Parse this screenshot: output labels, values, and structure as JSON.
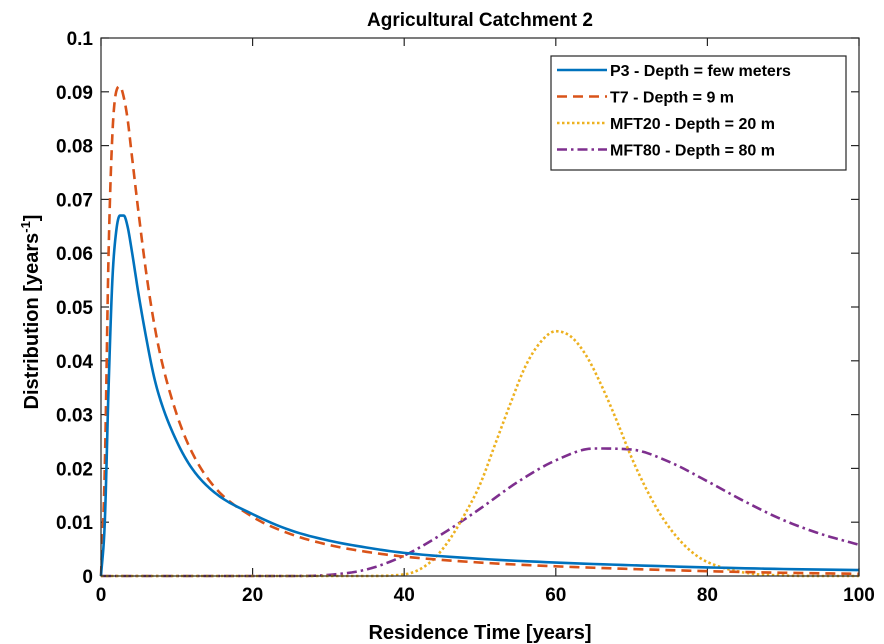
{
  "chart_data": {
    "type": "line",
    "title": "Agricultural Catchment 2",
    "xlabel": "Residence Time [years]",
    "ylabel": "Distribution [years",
    "ylabel_sup": "-1",
    "ylabel_end": "]",
    "xlim": [
      0,
      100
    ],
    "ylim": [
      0,
      0.1
    ],
    "xticks": [
      0,
      20,
      40,
      60,
      80,
      100
    ],
    "xtick_labels": [
      "0",
      "20",
      "40",
      "60",
      "80",
      "100"
    ],
    "yticks": [
      0,
      0.01,
      0.02,
      0.03,
      0.04,
      0.05,
      0.06,
      0.07,
      0.08,
      0.09,
      0.1
    ],
    "ytick_labels": [
      "0",
      "0.01",
      "0.02",
      "0.03",
      "0.04",
      "0.05",
      "0.06",
      "0.07",
      "0.08",
      "0.09",
      "0.1"
    ],
    "grid": false,
    "legend_position": "top-right",
    "series": [
      {
        "name": "P3 - Depth = few meters",
        "color": "#0072BD",
        "dash": "solid",
        "x": [
          0,
          0.5,
          1,
          1.5,
          2,
          2.5,
          3,
          3.5,
          4,
          5,
          6,
          7,
          8,
          10,
          12,
          15,
          20,
          25,
          30,
          35,
          40,
          50,
          60,
          70,
          80,
          90,
          100
        ],
        "y": [
          0,
          0.01,
          0.035,
          0.055,
          0.064,
          0.067,
          0.067,
          0.065,
          0.061,
          0.052,
          0.044,
          0.037,
          0.032,
          0.025,
          0.02,
          0.0155,
          0.0115,
          0.0085,
          0.0066,
          0.0053,
          0.0043,
          0.0032,
          0.0025,
          0.002,
          0.0016,
          0.0013,
          0.0011
        ]
      },
      {
        "name": "T7 - Depth = 9 m",
        "color": "#D95319",
        "dash": "dashed",
        "x": [
          0,
          0.5,
          1,
          1.5,
          2,
          2.5,
          3,
          3.5,
          4,
          5,
          6,
          7,
          8,
          10,
          12,
          15,
          20,
          25,
          30,
          35,
          40,
          50,
          60,
          70,
          80,
          90,
          100
        ],
        "y": [
          0,
          0.02,
          0.06,
          0.082,
          0.09,
          0.091,
          0.089,
          0.085,
          0.079,
          0.067,
          0.056,
          0.047,
          0.04,
          0.03,
          0.023,
          0.0165,
          0.011,
          0.0078,
          0.0058,
          0.0045,
          0.0036,
          0.0025,
          0.0018,
          0.0013,
          0.0009,
          0.0006,
          0.0004
        ]
      },
      {
        "name": "MFT20 - Depth = 20 m",
        "color": "#EDB120",
        "dash": "dotted",
        "x": [
          0,
          30,
          35,
          40,
          42,
          44,
          46,
          48,
          50,
          52,
          54,
          56,
          58,
          60,
          62,
          64,
          66,
          68,
          70,
          72,
          74,
          76,
          78,
          80,
          85,
          90,
          95,
          100
        ],
        "y": [
          0,
          0,
          0,
          0.0003,
          0.0012,
          0.0033,
          0.0068,
          0.0115,
          0.017,
          0.0245,
          0.032,
          0.039,
          0.0435,
          0.0455,
          0.0445,
          0.041,
          0.0355,
          0.029,
          0.022,
          0.016,
          0.011,
          0.0072,
          0.0044,
          0.0026,
          0.0006,
          0.0001,
          0,
          0
        ]
      },
      {
        "name": "MFT80 - Depth = 80 m",
        "color": "#7E2F8E",
        "dash": "dashdot",
        "x": [
          0,
          25,
          30,
          35,
          40,
          45,
          50,
          55,
          60,
          65,
          70,
          75,
          80,
          85,
          90,
          95,
          100
        ],
        "y": [
          0,
          0,
          0.0002,
          0.0012,
          0.0038,
          0.0078,
          0.0125,
          0.0175,
          0.0215,
          0.0237,
          0.0235,
          0.0212,
          0.0176,
          0.0138,
          0.0104,
          0.0078,
          0.0058
        ]
      }
    ]
  }
}
